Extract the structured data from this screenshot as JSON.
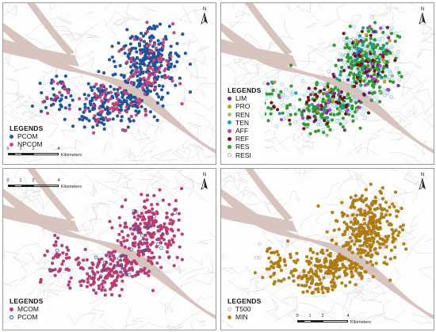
{
  "colors": {
    "pcom": "#1f57a4",
    "npcom": "#d1457e",
    "lim": "#7b2a8f",
    "pro": "#c79a1e",
    "ren": "#9fc37d",
    "ten": "#1c9fc0",
    "aff": "#c23bd6",
    "ref": "#7a1218",
    "res": "#2ea02e",
    "resi": "#8ec8dc",
    "mcom": "#c23c79",
    "t500": "#e2a7c8",
    "min": "#b8820f",
    "water": "#d8c4be",
    "roads": "#d7d7d7"
  },
  "north_label": "N",
  "scale": {
    "ticks": [
      "0",
      "1",
      "2",
      "4"
    ],
    "unit": "Kilometers"
  },
  "panels": {
    "top_left": {
      "legend_title": "LEGENDS",
      "items": [
        {
          "label": "PCOM",
          "symbol": "filled",
          "color_key": "pcom"
        },
        {
          "label": "NPCOM",
          "symbol": "filled",
          "color_key": "npcom"
        }
      ],
      "layers": [
        {
          "color_key": "pcom",
          "style": "filled",
          "count": 470
        },
        {
          "color_key": "npcom",
          "style": "filled",
          "count": 150
        }
      ]
    },
    "top_right": {
      "legend_title": "LEGENDS",
      "items": [
        {
          "label": "LIM",
          "symbol": "filled",
          "color_key": "lim"
        },
        {
          "label": "PRO",
          "symbol": "filled",
          "color_key": "pro"
        },
        {
          "label": "REN",
          "symbol": "filled",
          "color_key": "ren"
        },
        {
          "label": "TEN",
          "symbol": "filled",
          "color_key": "ten"
        },
        {
          "label": "AFF",
          "symbol": "filled",
          "color_key": "aff"
        },
        {
          "label": "REF",
          "symbol": "filled",
          "color_key": "ref"
        },
        {
          "label": "RES",
          "symbol": "filled",
          "color_key": "res"
        },
        {
          "label": "RESI",
          "symbol": "hollow",
          "color_key": "resi"
        }
      ],
      "layers": [
        {
          "color_key": "resi",
          "style": "hollow",
          "count": 360
        },
        {
          "color_key": "res",
          "style": "filled",
          "count": 320
        },
        {
          "color_key": "ten",
          "style": "filled",
          "count": 40
        },
        {
          "color_key": "lim",
          "style": "filled",
          "count": 35
        },
        {
          "color_key": "ref",
          "style": "filled",
          "count": 70
        },
        {
          "color_key": "aff",
          "style": "filled",
          "count": 20
        },
        {
          "color_key": "pro",
          "style": "filled",
          "count": 10
        },
        {
          "color_key": "ren",
          "style": "filled",
          "count": 15
        }
      ]
    },
    "bottom_left": {
      "legend_title": "LEGENDS",
      "items": [
        {
          "label": "MCOM",
          "symbol": "filled",
          "color_key": "mcom"
        },
        {
          "label": "PCOM",
          "symbol": "hollow",
          "color_key": "pcom"
        }
      ],
      "layers": [
        {
          "color_key": "mcom",
          "style": "filled",
          "count": 420
        },
        {
          "color_key": "pcom",
          "style": "hollow",
          "count": 30
        }
      ]
    },
    "bottom_right": {
      "legend_title": "LEGENDS",
      "items": [
        {
          "label": "T500",
          "symbol": "hollow",
          "color_key": "t500"
        },
        {
          "label": "MIN",
          "symbol": "filled",
          "color_key": "min"
        }
      ],
      "layers": [
        {
          "color_key": "t500",
          "style": "hollow",
          "count": 60
        },
        {
          "color_key": "min",
          "style": "filled",
          "count": 560
        }
      ]
    }
  }
}
